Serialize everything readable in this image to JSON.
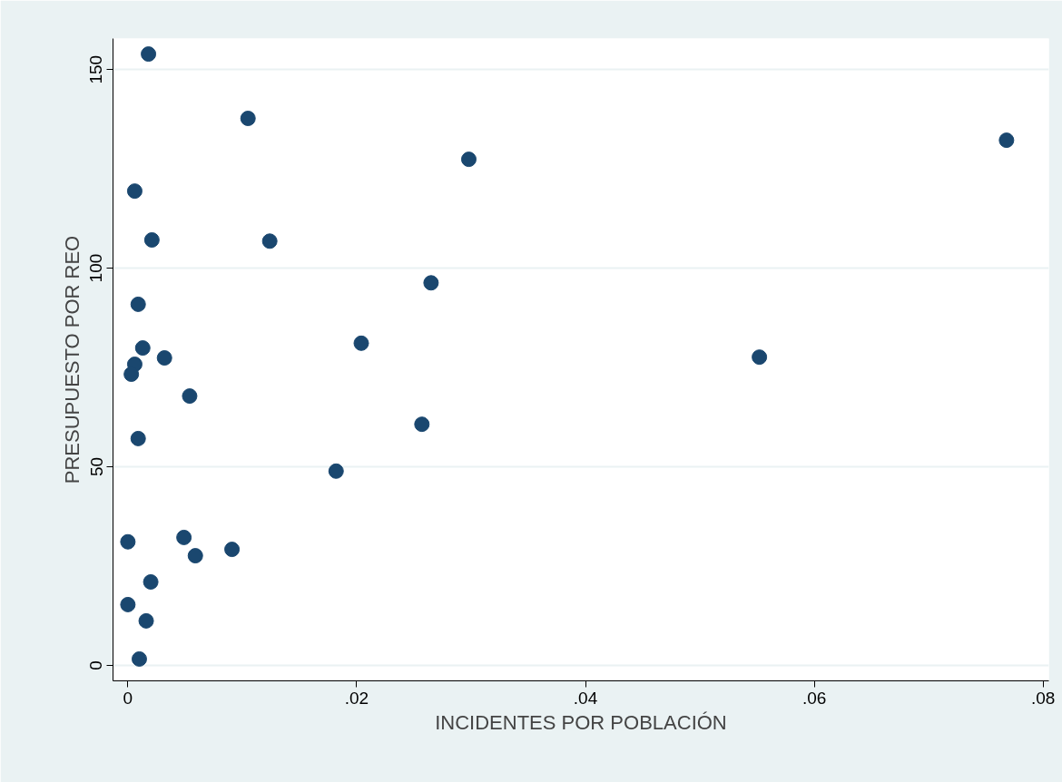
{
  "chart_data": {
    "type": "scatter",
    "xlabel": "INCIDENTES POR POBLACIÓN",
    "ylabel": "PRESUPUESTO POR REO",
    "x": [
      0.0018,
      0.0105,
      0.0298,
      0.0768,
      0.0006,
      0.0021,
      0.0124,
      0.0265,
      0.0009,
      0.0204,
      0.0013,
      0.0032,
      0.0552,
      0.0006,
      0.0003,
      0.0054,
      0.0257,
      0.0009,
      0.0182,
      0.0,
      0.0049,
      0.0091,
      0.0059,
      0.002,
      0.0,
      0.0016,
      0.001
    ],
    "series": [
      {
        "color": "#1a476f",
        "values": [
          153.9,
          137.7,
          127.4,
          132.2,
          119.4,
          107.1,
          106.8,
          96.3,
          90.9,
          81.1,
          79.9,
          77.4,
          77.6,
          75.8,
          73.3,
          67.8,
          60.7,
          57.1,
          48.9,
          31.1,
          32.2,
          29.2,
          27.6,
          21.0,
          15.3,
          11.2,
          1.6
        ]
      }
    ],
    "xlim": [
      -0.0013,
      0.0805
    ],
    "ylim": [
      -3.9,
      157.8
    ],
    "xticks": [
      {
        "value": 0,
        "label": "0"
      },
      {
        "value": 0.02,
        "label": ".02"
      },
      {
        "value": 0.04,
        "label": ".04"
      },
      {
        "value": 0.06,
        "label": ".06"
      },
      {
        "value": 0.08,
        "label": ".08"
      }
    ],
    "yticks": [
      0,
      50,
      100,
      150
    ],
    "grid": "y",
    "marker": "circle"
  }
}
